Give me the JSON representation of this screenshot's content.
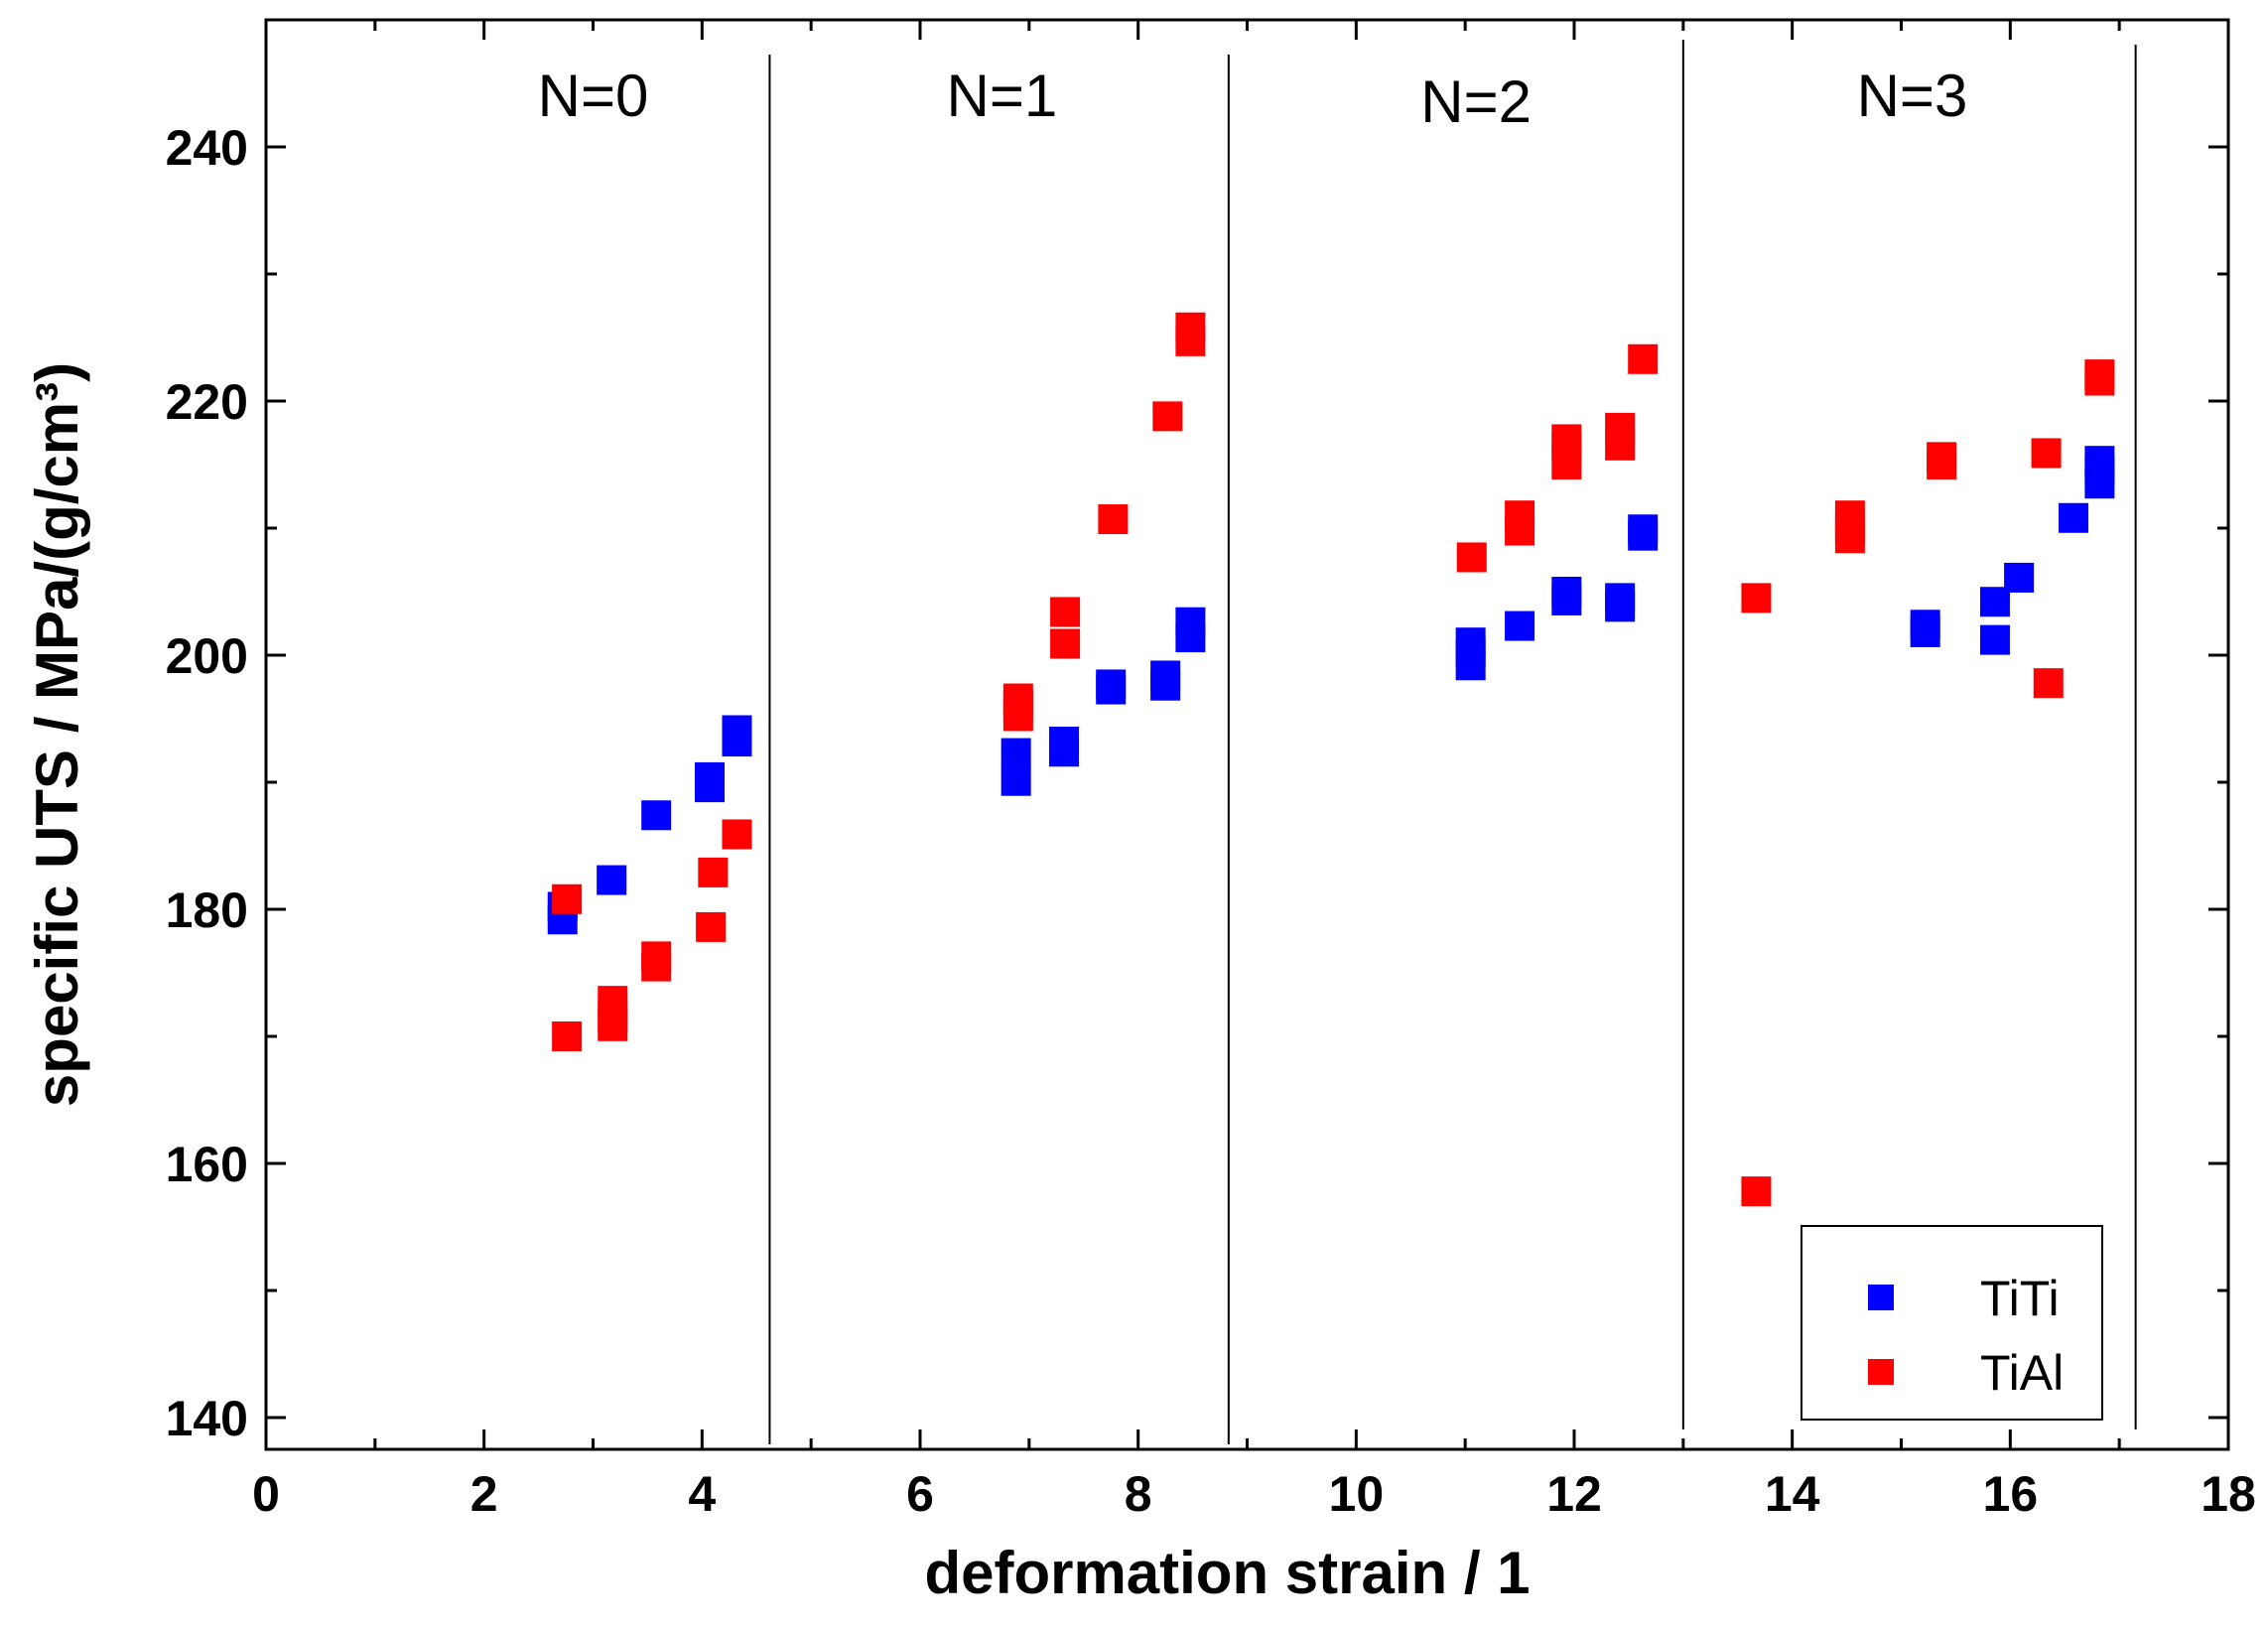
{
  "chart_data": {
    "type": "scatter",
    "title": "",
    "xlabel": "deformation strain / 1",
    "ylabel": "specific UTS / MPa/(g/cm³)",
    "xlim": [
      0,
      18
    ],
    "ylim": [
      137.5,
      250
    ],
    "x_ticks": [
      0,
      2,
      4,
      6,
      8,
      10,
      12,
      14,
      16,
      18
    ],
    "x_tick_labels": [
      "0",
      "2",
      "4",
      "6",
      "8",
      "10",
      "12",
      "14",
      "16",
      "18"
    ],
    "y_ticks": [
      140,
      160,
      180,
      200,
      220,
      240
    ],
    "y_tick_labels": [
      "140",
      "160",
      "180",
      "200",
      "220",
      "240"
    ],
    "x_minor_step": 1,
    "y_minor_step": 10,
    "grid": false,
    "legend_position": "bottom-right",
    "region_boundaries_x": [
      4.62,
      8.83,
      13.0,
      17.15
    ],
    "region_labels": [
      {
        "text": "N=0",
        "x": 3.0,
        "y": 244
      },
      {
        "text": "N=1",
        "x": 6.75,
        "y": 244
      },
      {
        "text": "N=2",
        "x": 11.1,
        "y": 243.5
      },
      {
        "text": "N=3",
        "x": 15.1,
        "y": 244
      }
    ],
    "series": [
      {
        "name": "TiTi",
        "color": "#0000ff",
        "x": [
          2.72,
          2.72,
          3.17,
          3.58,
          4.07,
          4.07,
          4.32,
          4.32,
          6.88,
          6.88,
          7.32,
          7.32,
          7.75,
          7.75,
          8.25,
          8.25,
          8.48,
          8.48,
          11.05,
          11.05,
          11.05,
          11.5,
          11.93,
          11.93,
          12.42,
          12.42,
          12.63,
          12.63,
          15.22,
          15.22,
          15.86,
          15.86,
          16.08,
          16.58,
          16.82,
          16.82,
          16.82
        ],
        "y": [
          179.2,
          180.2,
          182.3,
          187.4,
          189.6,
          190.4,
          193.2,
          194.1,
          190.1,
          192.3,
          192.4,
          193.2,
          197.3,
          197.7,
          197.6,
          198.4,
          201.4,
          202.6,
          199.2,
          200.2,
          201.0,
          202.3,
          204.3,
          205.0,
          203.8,
          204.5,
          209.4,
          209.9,
          201.8,
          202.4,
          201.2,
          204.2,
          206.1,
          210.8,
          213.5,
          214.5,
          215.3
        ]
      },
      {
        "name": "TiAl",
        "color": "#ff0000",
        "x": [
          2.76,
          2.76,
          3.18,
          3.18,
          3.18,
          3.58,
          3.58,
          4.08,
          4.1,
          4.32,
          6.9,
          6.9,
          6.9,
          7.33,
          7.33,
          7.77,
          8.27,
          8.48,
          8.48,
          11.06,
          11.5,
          11.5,
          11.93,
          11.93,
          11.93,
          12.42,
          12.42,
          12.63,
          13.67,
          13.67,
          14.53,
          14.53,
          14.53,
          15.37,
          15.37,
          16.33,
          16.35,
          16.82,
          16.82
        ],
        "y": [
          170.0,
          180.8,
          170.8,
          171.5,
          172.8,
          175.5,
          176.3,
          178.6,
          182.9,
          185.9,
          195.2,
          196.0,
          196.6,
          200.9,
          203.4,
          210.7,
          218.8,
          224.7,
          225.8,
          207.7,
          209.8,
          211.0,
          215.0,
          216.3,
          217.0,
          216.5,
          217.9,
          223.3,
          157.8,
          204.5,
          209.2,
          210.0,
          211.0,
          215.0,
          215.6,
          215.9,
          197.8,
          221.6,
          222.1
        ]
      }
    ]
  }
}
